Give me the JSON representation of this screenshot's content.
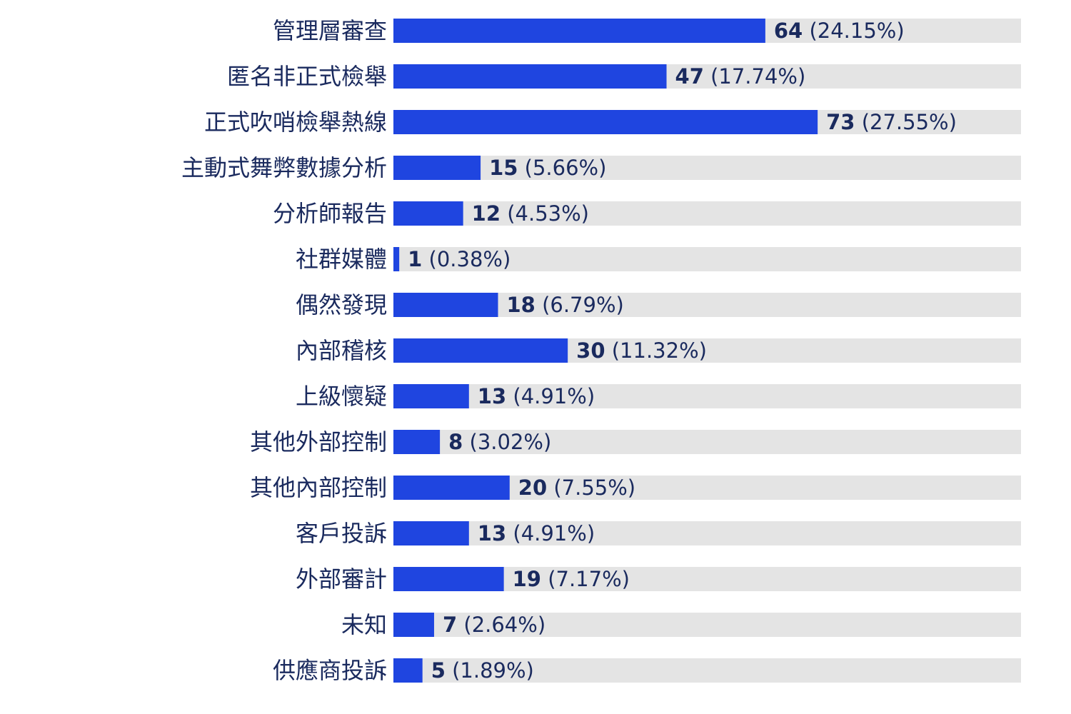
{
  "chart_data": {
    "type": "bar",
    "orientation": "horizontal",
    "categories": [
      "管理層審查",
      "匿名非正式檢舉",
      "正式吹哨檢舉熱線",
      "主動式舞弊數據分析",
      "分析師報告",
      "社群媒體",
      "偶然發現",
      "內部稽核",
      "上級懷疑",
      "其他外部控制",
      "其他內部控制",
      "客戶投訴",
      "外部審計",
      "未知",
      "供應商投訴"
    ],
    "values": [
      64,
      47,
      73,
      15,
      12,
      1,
      18,
      30,
      13,
      8,
      20,
      13,
      19,
      7,
      5
    ],
    "percent_labels": [
      "(24.15%)",
      "(17.74%)",
      "(27.55%)",
      "(5.66%)",
      "(4.53%)",
      "(0.38%)",
      "(6.79%)",
      "(11.32%)",
      "(4.91%)",
      "(3.02%)",
      "(7.55%)",
      "(4.91%)",
      "(7.17%)",
      "(2.64%)",
      "(1.89%)"
    ],
    "xlim": [
      0,
      108
    ],
    "bar_color": "#1f45e0",
    "track_color": "#e4e4e4",
    "text_color": "#1a2a5e",
    "grid": false,
    "legend": false
  }
}
